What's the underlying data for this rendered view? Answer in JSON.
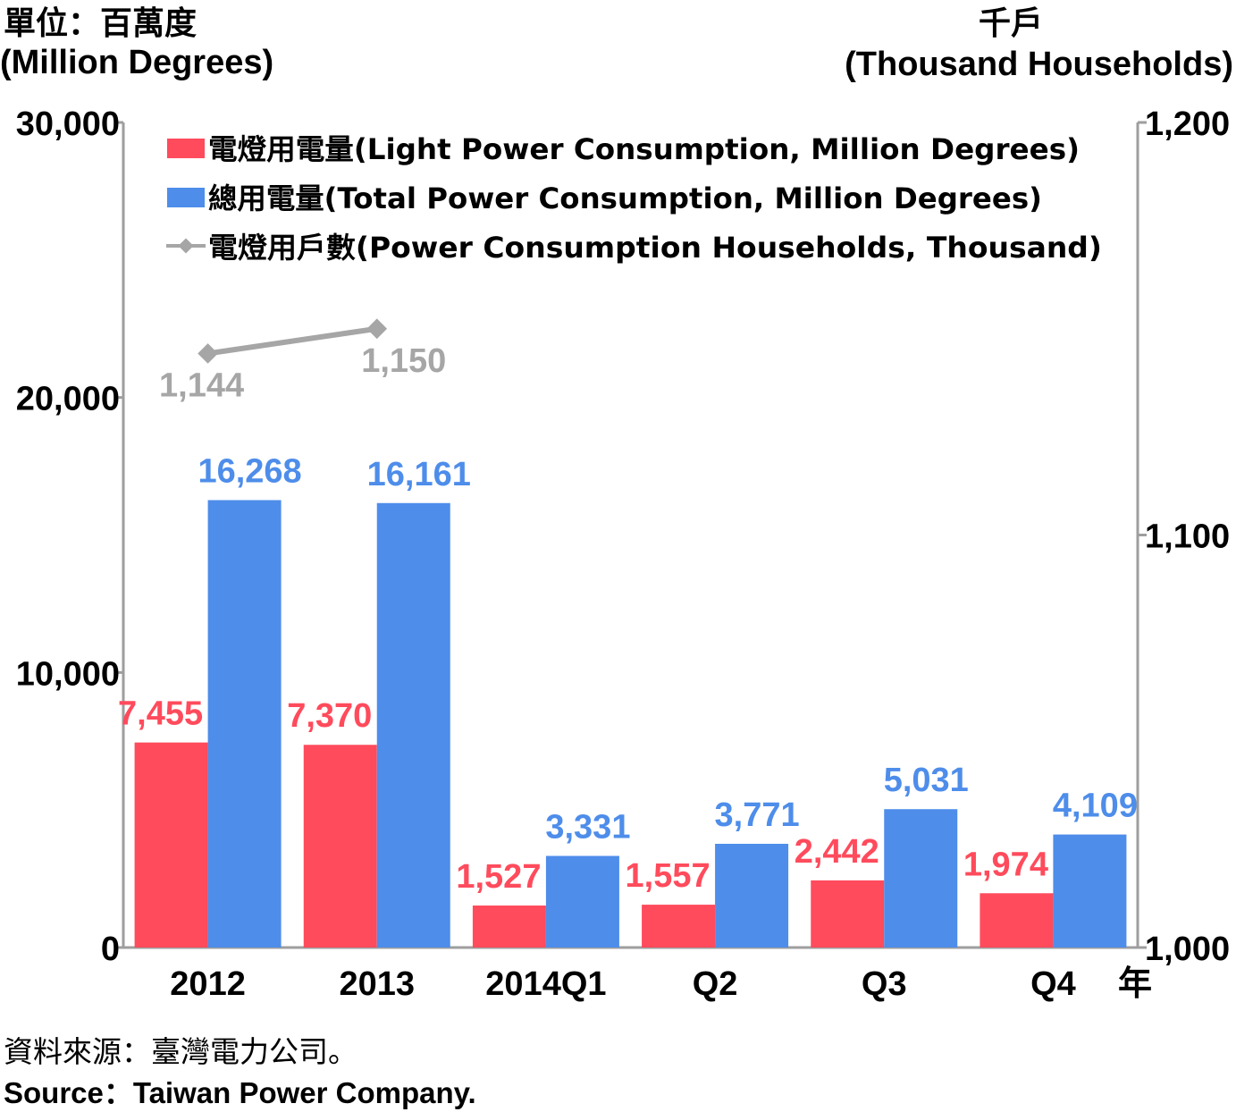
{
  "chart_data": {
    "type": "bar",
    "left_axis": {
      "unit_zh": "單位：百萬度",
      "unit_en": "(Million Degrees)",
      "ylim": [
        0,
        30000
      ],
      "ticks": [
        "0",
        "10,000",
        "20,000",
        "30,000"
      ],
      "tick_values": [
        0,
        10000,
        20000,
        30000
      ]
    },
    "right_axis": {
      "unit_zh": "千戶",
      "unit_en": "(Thousand Households)",
      "ylim": [
        1000,
        1200
      ],
      "ticks": [
        "1,000",
        "1,100",
        "1,200"
      ],
      "tick_values": [
        1000,
        1100,
        1200
      ]
    },
    "x_suffix": "年",
    "categories": [
      "2012",
      "2013",
      "2014Q1",
      "Q2",
      "Q3",
      "Q4"
    ],
    "series": [
      {
        "name": "電燈用電量(Light Power Consumption, Million Degrees)",
        "kind": "bar",
        "axis": "left",
        "color": "#FF4B5C",
        "values": [
          7455,
          7370,
          1527,
          1557,
          2442,
          1974
        ],
        "labels": [
          "7,455",
          "7,370",
          "1,527",
          "1,557",
          "2,442",
          "1,974"
        ]
      },
      {
        "name": "總用電量(Total Power Consumption, Million Degrees)",
        "kind": "bar",
        "axis": "left",
        "color": "#4E8DEA",
        "values": [
          16268,
          16161,
          3331,
          3771,
          5031,
          4109
        ],
        "labels": [
          "16,268",
          "16,161",
          "3,331",
          "3,771",
          "5,031",
          "4,109"
        ]
      },
      {
        "name": "電燈用戶數(Power Consumption Households, Thousand)",
        "kind": "line",
        "axis": "right",
        "color": "#A6A6A6",
        "values": [
          1144,
          1150,
          null,
          null,
          null,
          null
        ],
        "labels": [
          "1,144",
          "1,150"
        ]
      }
    ],
    "grid": false,
    "legend_position": "top"
  },
  "footer": {
    "source_zh": "資料來源：臺灣電力公司。",
    "source_en": "Source：Taiwan Power Company."
  }
}
